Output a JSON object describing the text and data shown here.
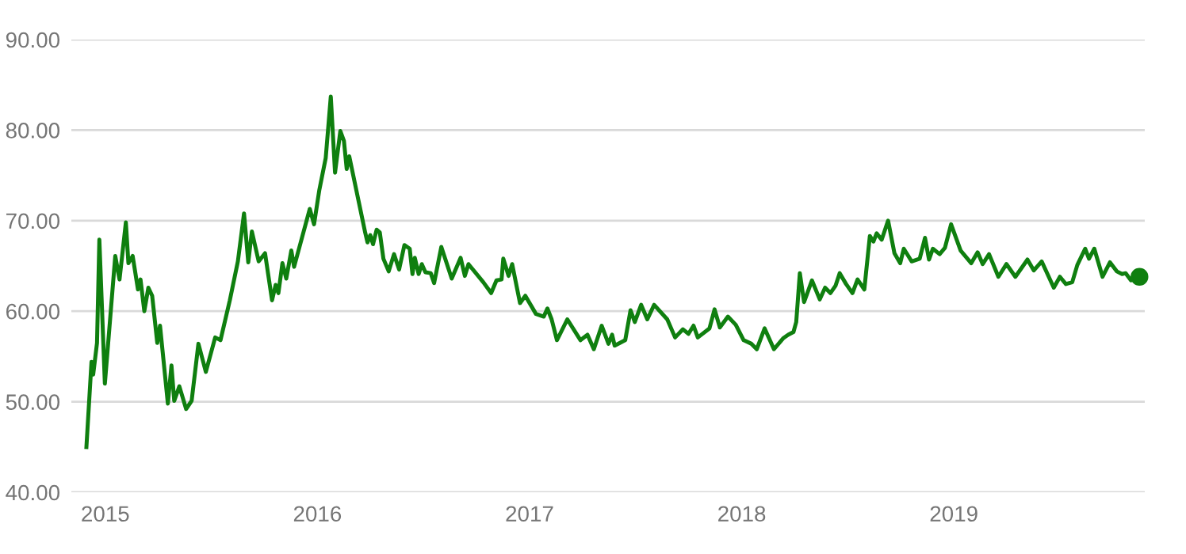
{
  "chart_data": {
    "type": "line",
    "series": [
      {
        "color": "#0f7f0f",
        "x": [
          2014.911,
          2014.935,
          2014.943,
          2014.961,
          2014.972,
          2014.998,
          2015.047,
          2015.067,
          2015.097,
          2015.109,
          2015.129,
          2015.154,
          2015.166,
          2015.184,
          2015.203,
          2015.221,
          2015.245,
          2015.258,
          2015.295,
          2015.312,
          2015.325,
          2015.349,
          2015.381,
          2015.407,
          2015.439,
          2015.474,
          2015.518,
          2015.543,
          2015.587,
          2015.625,
          2015.654,
          2015.674,
          2015.691,
          2015.723,
          2015.753,
          2015.786,
          2015.803,
          2015.816,
          2015.835,
          2015.853,
          2015.877,
          2015.89,
          2015.964,
          2015.984,
          2016.009,
          2016.039,
          2016.063,
          2016.083,
          2016.108,
          2016.125,
          2016.138,
          2016.15,
          2016.225,
          2016.236,
          2016.249,
          2016.262,
          2016.279,
          2016.294,
          2016.311,
          2016.336,
          2016.361,
          2016.385,
          2016.41,
          2016.435,
          2016.448,
          2016.459,
          2016.477,
          2016.492,
          2016.509,
          2016.534,
          2016.55,
          2016.584,
          2016.633,
          2016.675,
          2016.695,
          2016.712,
          2016.782,
          2016.819,
          2016.844,
          2016.868,
          2016.876,
          2016.901,
          2016.918,
          2016.955,
          2016.98,
          2017.03,
          2017.067,
          2017.084,
          2017.104,
          2017.129,
          2017.178,
          2017.24,
          2017.273,
          2017.303,
          2017.34,
          2017.372,
          2017.389,
          2017.401,
          2017.451,
          2017.476,
          2017.496,
          2017.526,
          2017.555,
          2017.587,
          2017.649,
          2017.686,
          2017.723,
          2017.749,
          2017.773,
          2017.793,
          2017.848,
          2017.872,
          2017.897,
          2017.935,
          2017.972,
          2018.009,
          2018.046,
          2018.071,
          2018.108,
          2018.152,
          2018.195,
          2018.219,
          2018.244,
          2018.257,
          2018.274,
          2018.294,
          2018.331,
          2018.368,
          2018.393,
          2018.418,
          2018.442,
          2018.462,
          2018.492,
          2018.522,
          2018.546,
          2018.578,
          2018.604,
          2018.621,
          2018.636,
          2018.66,
          2018.69,
          2018.72,
          2018.747,
          2018.764,
          2018.801,
          2018.839,
          2018.864,
          2018.883,
          2018.901,
          2018.933,
          2018.958,
          2018.987,
          2019.032,
          2019.082,
          2019.112,
          2019.136,
          2019.166,
          2019.21,
          2019.248,
          2019.29,
          2019.347,
          2019.377,
          2019.414,
          2019.471,
          2019.5,
          2019.528,
          2019.558,
          2019.582,
          2019.619,
          2019.637,
          2019.662,
          2019.701,
          2019.736,
          2019.768,
          2019.793,
          2019.81,
          2019.835,
          2019.875
        ],
        "values": [
          45.0,
          54.4,
          53.0,
          56.5,
          67.9,
          52.0,
          66.1,
          63.5,
          69.8,
          65.3,
          66.1,
          62.4,
          63.5,
          60.0,
          62.6,
          61.7,
          56.5,
          58.4,
          49.8,
          54.0,
          50.1,
          51.7,
          49.2,
          50.1,
          56.4,
          53.3,
          57.1,
          56.8,
          61.2,
          65.5,
          70.8,
          65.4,
          68.8,
          65.5,
          66.4,
          61.2,
          62.9,
          62.0,
          65.3,
          63.6,
          66.7,
          64.9,
          71.3,
          69.6,
          73.4,
          76.9,
          83.7,
          75.3,
          79.9,
          78.8,
          75.7,
          77.1,
          68.7,
          67.6,
          68.4,
          67.4,
          69.0,
          68.7,
          65.8,
          64.4,
          66.3,
          64.6,
          67.3,
          66.9,
          64.1,
          65.9,
          64.1,
          65.2,
          64.3,
          64.2,
          63.1,
          67.1,
          63.6,
          65.9,
          63.9,
          65.2,
          63.2,
          62.0,
          63.4,
          63.5,
          65.8,
          63.9,
          65.2,
          60.9,
          61.7,
          59.7,
          59.4,
          60.3,
          59.1,
          56.8,
          59.1,
          56.8,
          57.4,
          55.8,
          58.4,
          56.4,
          57.4,
          56.2,
          56.8,
          60.1,
          58.8,
          60.7,
          59.1,
          60.7,
          59.1,
          57.1,
          58.0,
          57.5,
          58.4,
          57.1,
          58.1,
          60.2,
          58.2,
          59.4,
          58.5,
          56.8,
          56.4,
          55.8,
          58.1,
          55.8,
          57.0,
          57.4,
          57.7,
          58.8,
          64.2,
          61.0,
          63.4,
          61.3,
          62.6,
          62.0,
          62.8,
          64.2,
          63.0,
          62.0,
          63.5,
          62.4,
          68.3,
          67.7,
          68.6,
          67.9,
          70.0,
          66.4,
          65.3,
          66.9,
          65.5,
          65.8,
          68.1,
          65.7,
          66.9,
          66.3,
          67.0,
          69.6,
          66.7,
          65.3,
          66.5,
          65.2,
          66.3,
          63.8,
          65.2,
          63.8,
          65.7,
          64.5,
          65.5,
          62.6,
          63.8,
          63.0,
          63.2,
          65.1,
          66.9,
          65.8,
          66.9,
          63.8,
          65.4,
          64.4,
          64.1,
          64.2,
          63.4,
          63.8
        ]
      },
      {
        "type": "scatter",
        "color": "#0f7f0f",
        "marker": "circle",
        "x": [
          2019.875
        ],
        "values": [
          63.8
        ]
      }
    ],
    "xlim": [
      2014.84,
      2019.9
    ],
    "xticks": [
      2015,
      2016,
      2017,
      2018,
      2019
    ],
    "ylim": [
      40,
      90
    ],
    "yticks": [
      {
        "value": 40,
        "label": "40.00"
      },
      {
        "value": 50,
        "label": "50.00"
      },
      {
        "value": 60,
        "label": "60.00"
      },
      {
        "value": 70,
        "label": "70.00"
      },
      {
        "value": 80,
        "label": "80.00"
      },
      {
        "value": 90,
        "label": "90.00"
      }
    ],
    "grid": "y",
    "legend": false
  }
}
